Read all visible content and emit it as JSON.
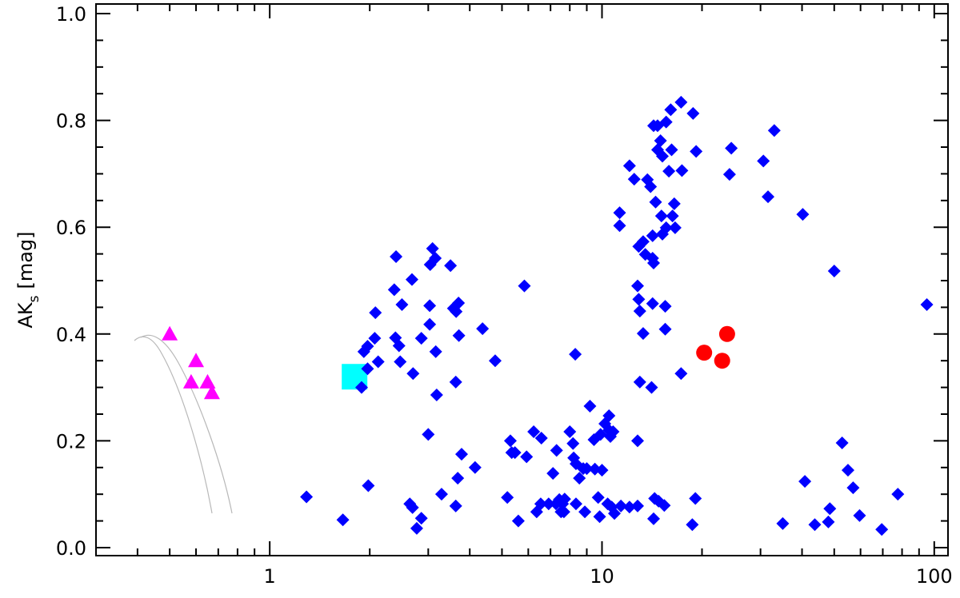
{
  "chart_data": {
    "type": "scatter",
    "xlog": true,
    "ylabel": "AK",
    "ylabel_sub": "s",
    "ylabel_unit": "[mag]",
    "xlim": [
      0.3,
      110
    ],
    "ylim": [
      -0.015,
      1.018
    ],
    "xticks": [
      1,
      10,
      100
    ],
    "xminor": [
      0.4,
      0.5,
      0.6,
      0.7,
      0.8,
      0.9,
      2,
      3,
      4,
      5,
      6,
      7,
      8,
      9,
      20,
      30,
      40,
      50,
      60,
      70,
      80,
      90
    ],
    "yticks": [
      {
        "value": 0,
        "label": "0.0"
      },
      0.2,
      0.4,
      0.6,
      0.8,
      {
        "value": 1,
        "label": "1.0"
      }
    ],
    "yminor": [
      0.05,
      0.1,
      0.15,
      0.25,
      0.3,
      0.35,
      0.45,
      0.5,
      0.55,
      0.65,
      0.7,
      0.75,
      0.85,
      0.9,
      0.95
    ],
    "series": [
      {
        "marker": "triangle",
        "color": "#ff00ff",
        "x": [
          0.5,
          0.6,
          0.58,
          0.65,
          0.67
        ],
        "values": [
          0.4,
          0.35,
          0.31,
          0.31,
          0.29
        ]
      },
      {
        "marker": "square",
        "color": "#00ffff",
        "x": [
          1.8
        ],
        "values": [
          0.32
        ]
      },
      {
        "marker": "circle",
        "color": "#ff0000",
        "x": [
          20.3,
          23.8,
          23.0
        ],
        "values": [
          0.365,
          0.4,
          0.35
        ]
      },
      {
        "marker": "diamond",
        "color": "#0000ff",
        "x": [
          1.29,
          1.66,
          1.89,
          1.92,
          1.97,
          2.07,
          2.08,
          1.97,
          2.12,
          1.98,
          2.4,
          2.37,
          2.39,
          2.45,
          2.5,
          2.47,
          2.68,
          2.7,
          2.64,
          2.69,
          2.77,
          2.86,
          2.86,
          3.0,
          3.03,
          3.04,
          3.09,
          3.03,
          3.15,
          3.16,
          3.18,
          3.29,
          3.5,
          3.57,
          3.64,
          3.7,
          3.71,
          3.63,
          3.68,
          3.78,
          3.63,
          4.15,
          4.37,
          4.77,
          5.19,
          5.3,
          5.35,
          5.47,
          5.6,
          5.84,
          5.93,
          6.23,
          6.36,
          6.57,
          6.54,
          6.91,
          7.12,
          7.27,
          7.3,
          7.53,
          7.44,
          7.61,
          7.68,
          7.72,
          8.0,
          8.18,
          8.22,
          8.35,
          8.31,
          8.35,
          8.55,
          8.78,
          8.88,
          9.0,
          9.2,
          9.46,
          9.52,
          9.74,
          9.84,
          10.0,
          9.9,
          10.2,
          10.5,
          10.5,
          10.6,
          10.7,
          10.4,
          10.8,
          10.9,
          11.4,
          12.1,
          12.8,
          12.8,
          11.3,
          11.3,
          12.1,
          12.5,
          12.8,
          12.9,
          13.0,
          13.0,
          12.9,
          13.3,
          13.3,
          13.5,
          13.7,
          14.0,
          14.3,
          14.2,
          14.3,
          14.2,
          14.1,
          14.2,
          14.4,
          14.3,
          14.5,
          14.7,
          14.7,
          14.8,
          15.0,
          15.1,
          15.2,
          15.2,
          15.5,
          15.5,
          15.6,
          15.4,
          15.6,
          15.9,
          16.1,
          16.2,
          16.3,
          16.5,
          16.6,
          17.3,
          17.4,
          17.3,
          18.8,
          19.2,
          19.1,
          18.7,
          24.5,
          24.2,
          30.6,
          31.6,
          33.0,
          40.2,
          40.8,
          35.0,
          43.7,
          48.0,
          48.5,
          50.0,
          52.8,
          55.0,
          57.0,
          59.6,
          69.5,
          77.7,
          95.0
        ],
        "values": [
          0.095,
          0.052,
          0.3,
          0.367,
          0.377,
          0.392,
          0.44,
          0.335,
          0.348,
          0.116,
          0.545,
          0.483,
          0.393,
          0.378,
          0.455,
          0.348,
          0.502,
          0.326,
          0.082,
          0.075,
          0.036,
          0.055,
          0.392,
          0.212,
          0.453,
          0.53,
          0.56,
          0.418,
          0.542,
          0.367,
          0.286,
          0.1,
          0.528,
          0.448,
          0.442,
          0.458,
          0.397,
          0.31,
          0.13,
          0.175,
          0.078,
          0.15,
          0.41,
          0.35,
          0.094,
          0.2,
          0.178,
          0.178,
          0.05,
          0.49,
          0.17,
          0.217,
          0.067,
          0.205,
          0.082,
          0.082,
          0.139,
          0.082,
          0.182,
          0.067,
          0.09,
          0.082,
          0.067,
          0.091,
          0.217,
          0.195,
          0.168,
          0.157,
          0.362,
          0.082,
          0.13,
          0.148,
          0.067,
          0.148,
          0.265,
          0.202,
          0.147,
          0.094,
          0.058,
          0.145,
          0.212,
          0.232,
          0.247,
          0.22,
          0.208,
          0.076,
          0.082,
          0.217,
          0.064,
          0.078,
          0.076,
          0.078,
          0.2,
          0.627,
          0.603,
          0.715,
          0.69,
          0.49,
          0.465,
          0.443,
          0.31,
          0.564,
          0.573,
          0.401,
          0.549,
          0.689,
          0.676,
          0.79,
          0.542,
          0.533,
          0.584,
          0.3,
          0.457,
          0.092,
          0.054,
          0.647,
          0.79,
          0.745,
          0.087,
          0.762,
          0.621,
          0.587,
          0.733,
          0.452,
          0.409,
          0.599,
          0.079,
          0.797,
          0.705,
          0.82,
          0.745,
          0.621,
          0.644,
          0.599,
          0.834,
          0.706,
          0.326,
          0.813,
          0.742,
          0.092,
          0.043,
          0.748,
          0.699,
          0.724,
          0.657,
          0.781,
          0.624,
          0.124,
          0.045,
          0.043,
          0.048,
          0.073,
          0.518,
          0.196,
          0.145,
          0.112,
          0.06,
          0.034,
          0.1,
          0.455
        ]
      }
    ]
  }
}
